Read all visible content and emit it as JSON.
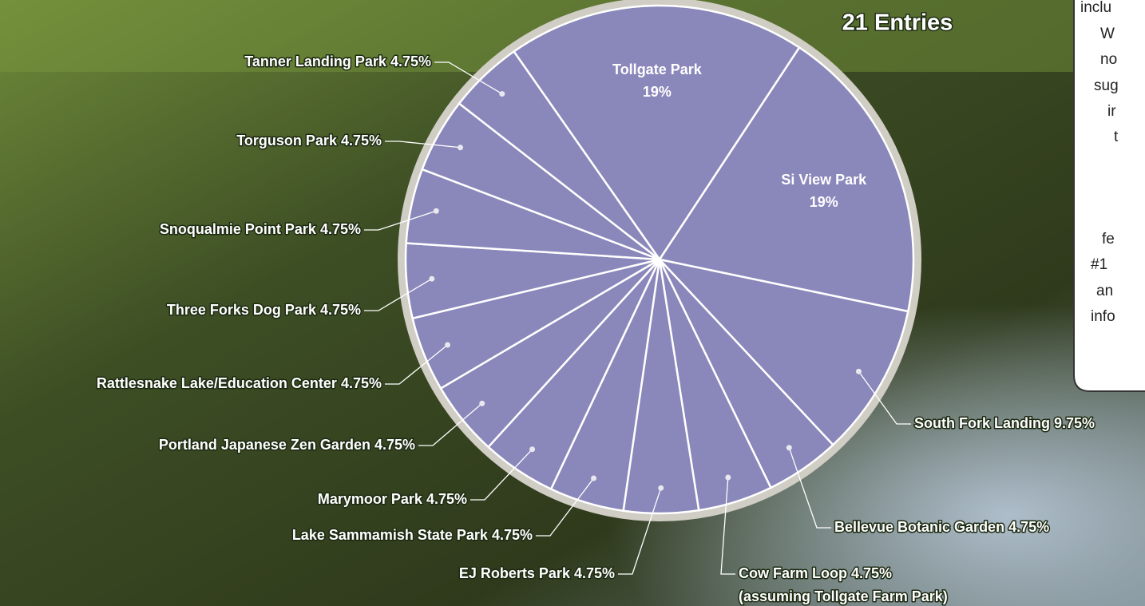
{
  "chart_data": {
    "type": "pie",
    "title": "21 Entries",
    "categories": [
      "Tollgate Park",
      "Si View Park",
      "South Fork Landing",
      "Bellevue Botanic Garden",
      "Cow Farm Loop",
      "EJ Roberts Park",
      "Lake Sammamish State Park",
      "Marymoor Park",
      "Portland Japanese Zen Garden",
      "Rattlesnake Lake/Education Center",
      "Three Forks Dog Park",
      "Snoqualmie Point Park",
      "Torguson Park",
      "Tanner Landing Park"
    ],
    "values": [
      19,
      19,
      9.75,
      4.75,
      4.75,
      4.75,
      4.75,
      4.75,
      4.75,
      4.75,
      4.75,
      4.75,
      4.75,
      4.75
    ],
    "value_labels": [
      "19%",
      "19%",
      "9.75%",
      "4.75%",
      "4.75%",
      "4.75%",
      "4.75%",
      "4.75%",
      "4.75%",
      "4.75%",
      "4.75%",
      "4.75%",
      "4.75%",
      "4.75%"
    ],
    "color": "#8a87bb",
    "annotations": [
      "(assuming Tollgate Farm Park)"
    ]
  },
  "side_panel": {
    "lines": [
      "inclu",
      "W",
      "no",
      "sug",
      "ir",
      "t",
      "fe",
      "#1",
      "an",
      "info"
    ]
  }
}
